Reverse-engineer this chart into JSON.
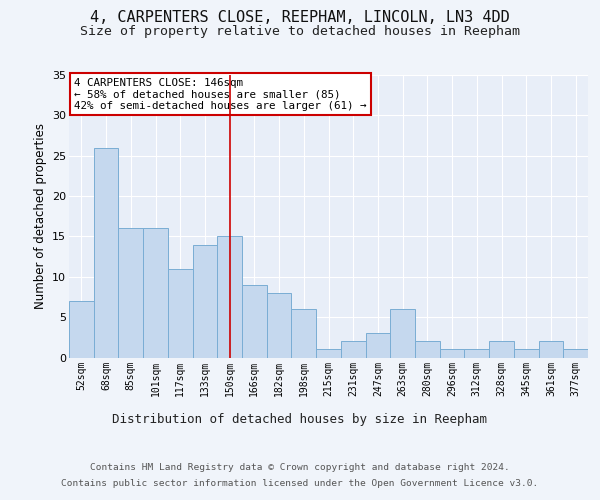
{
  "title1": "4, CARPENTERS CLOSE, REEPHAM, LINCOLN, LN3 4DD",
  "title2": "Size of property relative to detached houses in Reepham",
  "xlabel_bottom": "Distribution of detached houses by size in Reepham",
  "ylabel": "Number of detached properties",
  "footer1": "Contains HM Land Registry data © Crown copyright and database right 2024.",
  "footer2": "Contains public sector information licensed under the Open Government Licence v3.0.",
  "bar_labels": [
    "52sqm",
    "68sqm",
    "85sqm",
    "101sqm",
    "117sqm",
    "133sqm",
    "150sqm",
    "166sqm",
    "182sqm",
    "198sqm",
    "215sqm",
    "231sqm",
    "247sqm",
    "263sqm",
    "280sqm",
    "296sqm",
    "312sqm",
    "328sqm",
    "345sqm",
    "361sqm",
    "377sqm"
  ],
  "bar_values": [
    7,
    26,
    16,
    16,
    11,
    14,
    15,
    9,
    8,
    6,
    1,
    2,
    3,
    6,
    2,
    1,
    1,
    2,
    1,
    2,
    1
  ],
  "bar_color": "#c5d8ee",
  "bar_edge_color": "#7aadd4",
  "vline_x": 6,
  "vline_color": "#cc0000",
  "annotation_text": "4 CARPENTERS CLOSE: 146sqm\n← 58% of detached houses are smaller (85)\n42% of semi-detached houses are larger (61) →",
  "annotation_box_color": "#ffffff",
  "annotation_box_edge": "#cc0000",
  "ylim": [
    0,
    35
  ],
  "yticks": [
    0,
    5,
    10,
    15,
    20,
    25,
    30,
    35
  ],
  "bg_color": "#f0f4fa",
  "plot_bg_color": "#e8eef8",
  "grid_color": "#ffffff",
  "title1_fontsize": 11,
  "title2_fontsize": 9.5,
  "ylabel_fontsize": 8.5,
  "xlabel_bottom_fontsize": 9,
  "tick_fontsize": 7,
  "footer_fontsize": 6.8,
  "ann_fontsize": 7.8
}
